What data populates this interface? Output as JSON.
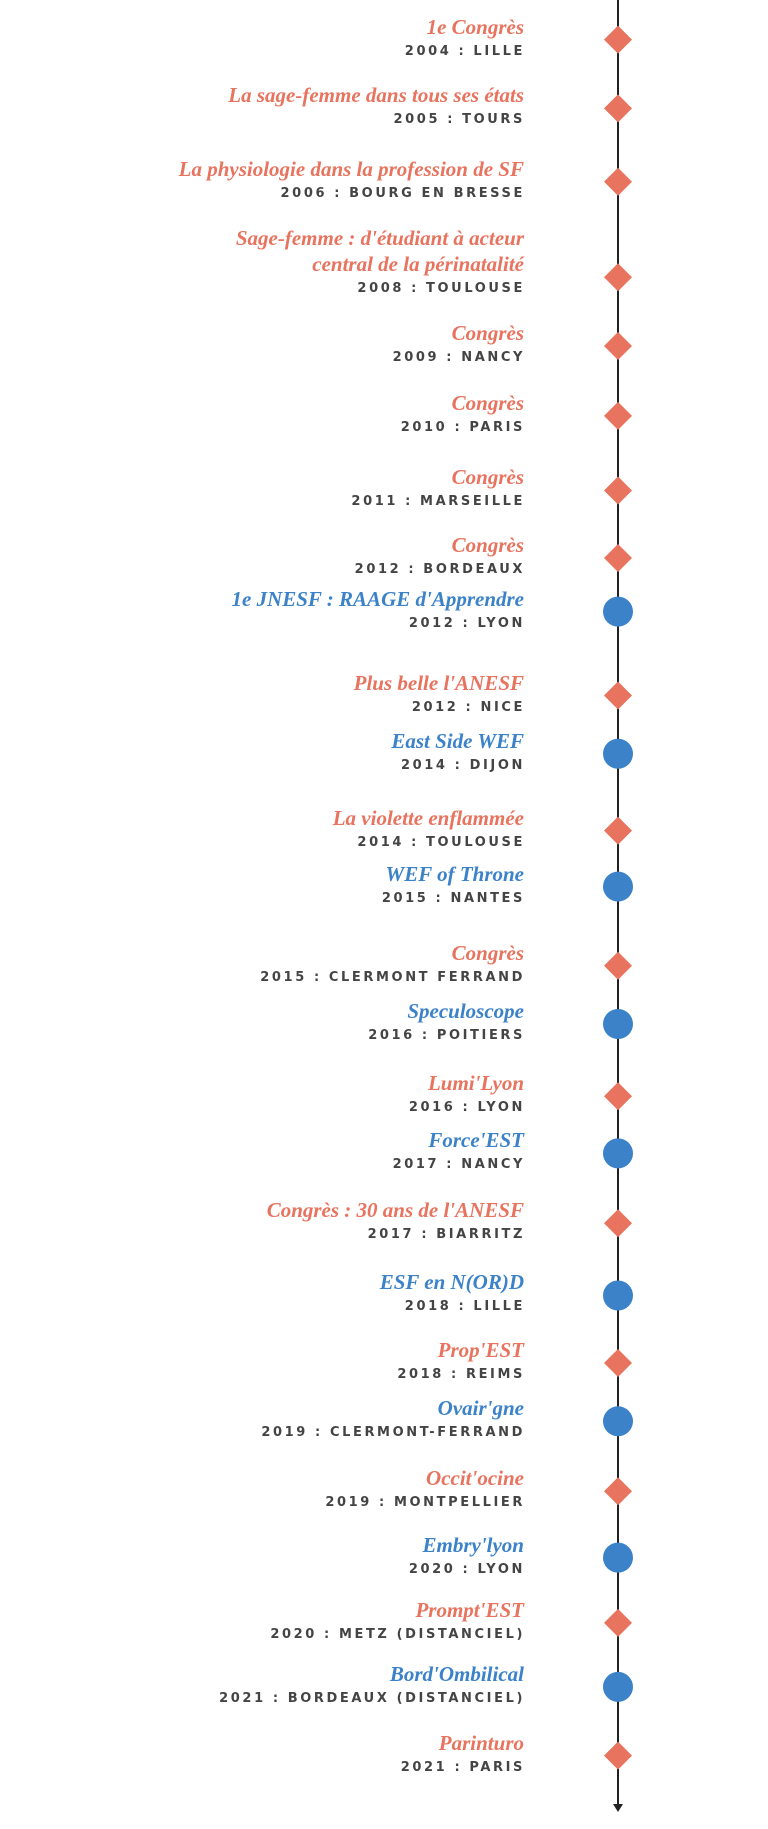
{
  "items": [
    {
      "title": "1e Congrès",
      "subtitle": "2004 : LILLE",
      "marker": "diamond",
      "color": "#e8735e"
    },
    {
      "title": "La sage-femme dans tous ses états",
      "subtitle": "2005 : TOURS",
      "marker": "diamond",
      "color": "#e8735e"
    },
    {
      "title": "La physiologie dans la profession de SF",
      "subtitle": "2006 : BOURG EN BRESSE",
      "marker": "diamond",
      "color": "#e8735e"
    },
    {
      "title": "Sage-femme : d'étudiant à acteur\ncentral de la périnatalité",
      "subtitle": "2008 : TOULOUSE",
      "marker": "diamond",
      "color": "#e8735e"
    },
    {
      "title": "Congrès",
      "subtitle": "2009 : NANCY",
      "marker": "diamond",
      "color": "#e8735e"
    },
    {
      "title": "Congrès",
      "subtitle": "2010 : PARIS",
      "marker": "diamond",
      "color": "#e8735e"
    },
    {
      "title": "Congrès",
      "subtitle": "2011 : MARSEILLE",
      "marker": "diamond",
      "color": "#e8735e"
    },
    {
      "title": "Congrès",
      "subtitle": "2012 : BORDEAUX",
      "marker": "diamond",
      "color": "#e8735e"
    },
    {
      "title": "1e JNESF : RAAGE d'Apprendre",
      "subtitle": "2012 : LYON",
      "marker": "circle",
      "color": "#3b82c9"
    },
    {
      "title": "Plus belle l'ANESF",
      "subtitle": "2012 : NICE",
      "marker": "diamond",
      "color": "#e8735e"
    },
    {
      "title": "East Side WEF",
      "subtitle": "2014 : DIJON",
      "marker": "circle",
      "color": "#3b82c9"
    },
    {
      "title": "La violette enflammée",
      "subtitle": "2014 : TOULOUSE",
      "marker": "diamond",
      "color": "#e8735e"
    },
    {
      "title": "WEF of Throne",
      "subtitle": "2015 : NANTES",
      "marker": "circle",
      "color": "#3b82c9"
    },
    {
      "title": "Congrès",
      "subtitle": "2015 : CLERMONT FERRAND",
      "marker": "diamond",
      "color": "#e8735e"
    },
    {
      "title": "Speculoscope",
      "subtitle": "2016 : POITIERS",
      "marker": "circle",
      "color": "#3b82c9"
    },
    {
      "title": "Lumi'Lyon",
      "subtitle": "2016 : LYON",
      "marker": "diamond",
      "color": "#e8735e"
    },
    {
      "title": "Force'EST",
      "subtitle": "2017 : NANCY",
      "marker": "circle",
      "color": "#3b82c9"
    },
    {
      "title": "Congrès : 30 ans de l'ANESF",
      "subtitle": "2017 : BIARRITZ",
      "marker": "diamond",
      "color": "#e8735e"
    },
    {
      "title": "ESF en N(OR)D",
      "subtitle": "2018 : LILLE",
      "marker": "circle",
      "color": "#3b82c9"
    },
    {
      "title": "Prop'EST",
      "subtitle": "2018 : REIMS",
      "marker": "diamond",
      "color": "#e8735e"
    },
    {
      "title": "Ovair'gne",
      "subtitle": "2019 : CLERMONT-FERRAND",
      "marker": "circle",
      "color": "#3b82c9"
    },
    {
      "title": "Occit'ocine",
      "subtitle": "2019 : MONTPELLIER",
      "marker": "diamond",
      "color": "#e8735e"
    },
    {
      "title": "Embry'lyon",
      "subtitle": "2020 : LYON",
      "marker": "circle",
      "color": "#3b82c9"
    },
    {
      "title": "Prompt'EST",
      "subtitle": "2020 : METZ (DISTANCIEL)",
      "marker": "diamond",
      "color": "#e8735e"
    },
    {
      "title": "Bord'Ombilical",
      "subtitle": "2021 : BORDEAUX (DISTANCIEL)",
      "marker": "circle",
      "color": "#3b82c9"
    },
    {
      "title": "Parinturo",
      "subtitle": "2021 : PARIS",
      "marker": "diamond",
      "color": "#e8735e"
    }
  ]
}
